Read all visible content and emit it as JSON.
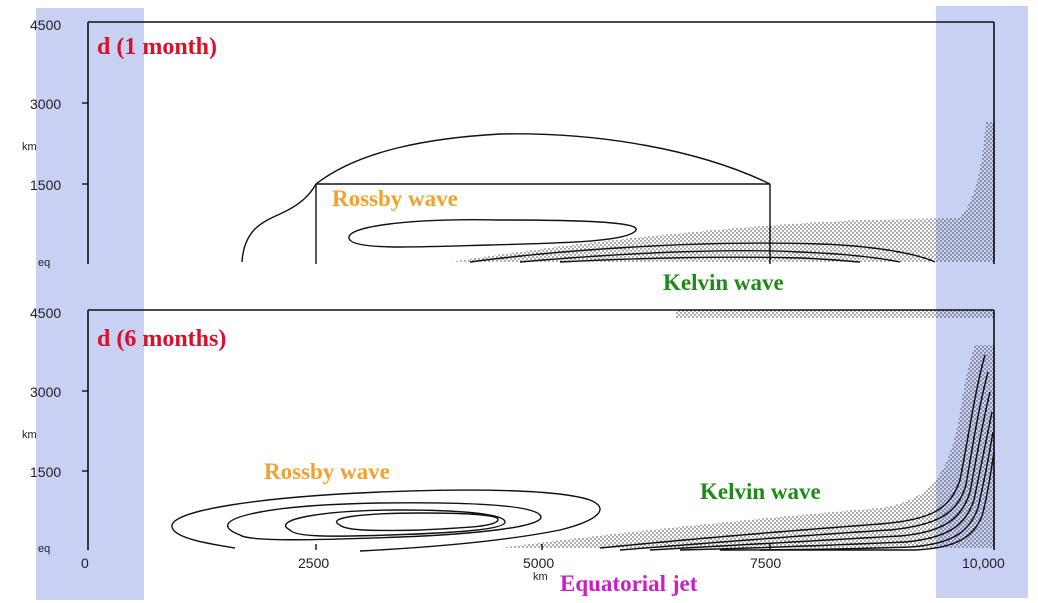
{
  "panels": [
    {
      "id": "top",
      "label": "d (1 month)",
      "y_ticks": [
        "4500",
        "3000",
        "1500",
        "eq"
      ],
      "y_unit": "km",
      "rossby_label": "Rossby wave",
      "kelvin_label": "Kelvin wave"
    },
    {
      "id": "bottom",
      "label": "d (6 months)",
      "y_ticks": [
        "4500",
        "3000",
        "1500",
        "eq"
      ],
      "y_unit": "km",
      "rossby_label": "Rossby wave",
      "kelvin_label": "Kelvin wave"
    }
  ],
  "x_axis": {
    "ticks": [
      "0",
      "2500",
      "5000",
      "7500",
      "10,000"
    ],
    "unit": "km"
  },
  "jet_label": "Equatorial jet",
  "colors": {
    "highlight_band": "#c8d0f4",
    "panel_label": "#d8102a",
    "rossby": "#f3a02c",
    "kelvin": "#1e8b18",
    "jet": "#c81fc6"
  }
}
